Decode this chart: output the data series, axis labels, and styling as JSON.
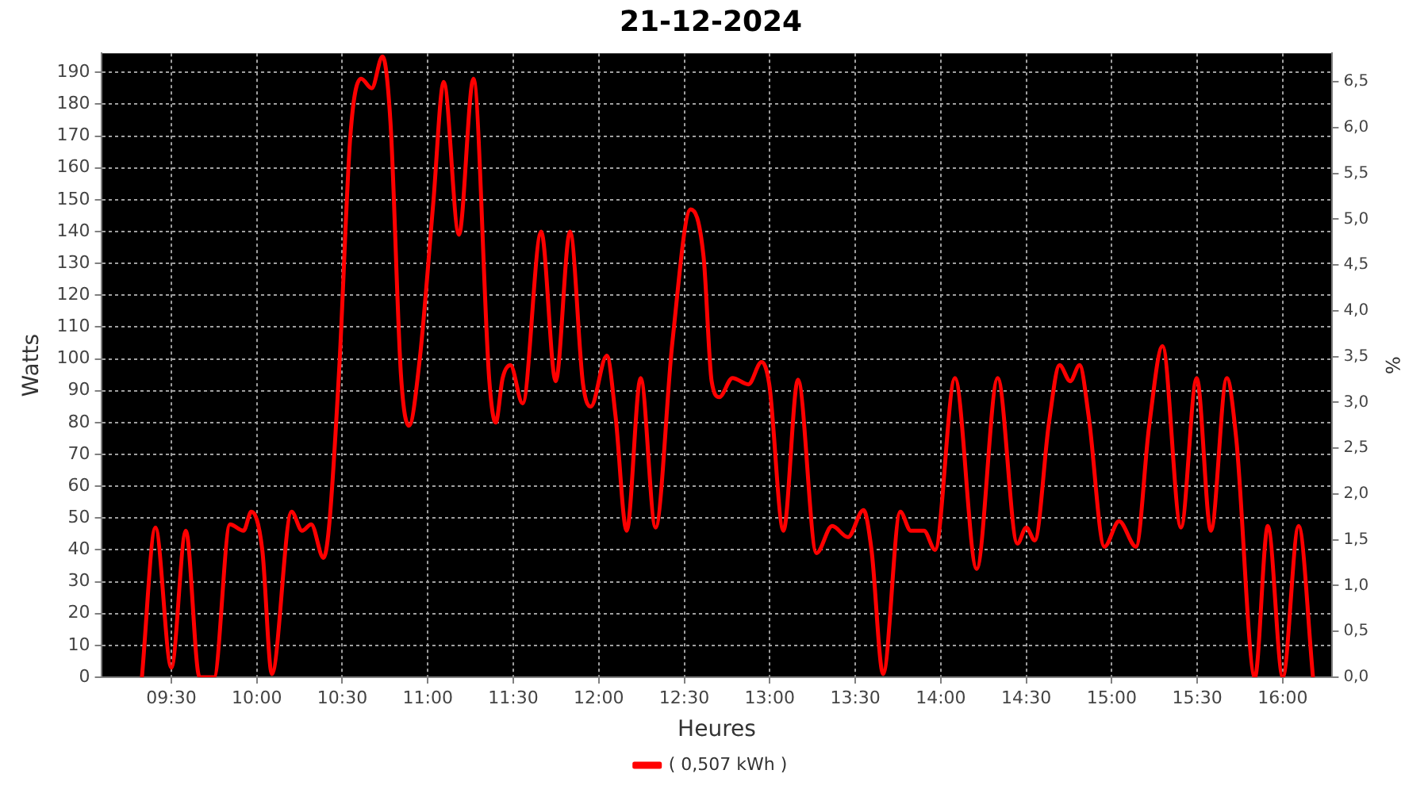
{
  "chart_data": {
    "type": "line",
    "title": "21-12-2024",
    "xlabel": "Heures",
    "ylabel": "Watts",
    "y2label": "%",
    "x": [
      9.328,
      9.407,
      9.5,
      9.585,
      9.665,
      9.75,
      9.843,
      9.922,
      9.968,
      10.032,
      10.088,
      10.203,
      10.265,
      10.318,
      10.39,
      10.422,
      10.483,
      10.547,
      10.61,
      10.672,
      10.735,
      10.782,
      10.843,
      10.89,
      10.953,
      11.032,
      11.093,
      11.182,
      11.267,
      11.36,
      11.397,
      11.438,
      11.483,
      11.555,
      11.663,
      11.748,
      11.832,
      11.908,
      11.953,
      12.047,
      12.098,
      12.163,
      12.245,
      12.332,
      12.43,
      12.537,
      12.613,
      12.66,
      12.705,
      12.782,
      12.875,
      12.952,
      12.997,
      13.08,
      13.165,
      13.273,
      13.365,
      13.457,
      13.548,
      13.595,
      13.663,
      13.763,
      13.825,
      13.902,
      13.967,
      14.083,
      14.21,
      14.333,
      14.448,
      14.5,
      14.55,
      14.633,
      14.695,
      14.757,
      14.812,
      14.865,
      14.957,
      15.043,
      15.142,
      15.218,
      15.297,
      15.405,
      15.497,
      15.58,
      15.673,
      15.728,
      15.837,
      15.913,
      16.0,
      16.093,
      16.177
    ],
    "series": [
      {
        "name": "( 0,507 kWh )",
        "color": "#ff0000",
        "values": [
          0,
          47,
          3,
          46,
          0,
          0,
          48,
          46,
          52,
          40,
          1,
          52,
          46,
          48,
          37.5,
          47,
          98,
          170,
          188,
          185,
          195,
          174,
          95,
          79,
          100,
          149,
          187,
          139,
          188,
          93,
          80,
          94,
          98,
          86,
          140,
          93,
          140,
          92,
          85,
          101,
          82,
          46,
          94,
          47,
          105,
          147,
          132,
          93,
          88,
          94,
          92,
          99,
          92,
          46,
          93.5,
          39,
          47.5,
          44,
          52.5,
          40,
          1,
          52,
          46,
          46,
          40,
          94,
          34,
          94,
          42,
          47,
          43,
          80,
          98,
          93,
          98,
          82,
          41,
          49,
          41,
          78.5,
          104,
          47,
          94,
          46,
          94,
          75,
          0,
          47.5,
          0,
          47.5,
          0
        ]
      }
    ],
    "xlim": [
      9.09,
      16.29
    ],
    "xticks": [
      {
        "value": 9.5,
        "label": "09:30"
      },
      {
        "value": 10,
        "label": "10:00"
      },
      {
        "value": 10.5,
        "label": "10:30"
      },
      {
        "value": 11,
        "label": "11:00"
      },
      {
        "value": 11.5,
        "label": "11:30"
      },
      {
        "value": 12,
        "label": "12:00"
      },
      {
        "value": 12.5,
        "label": "12:30"
      },
      {
        "value": 13,
        "label": "13:00"
      },
      {
        "value": 13.5,
        "label": "13:30"
      },
      {
        "value": 14,
        "label": "14:00"
      },
      {
        "value": 14.5,
        "label": "14:30"
      },
      {
        "value": 15,
        "label": "15:00"
      },
      {
        "value": 15.5,
        "label": "15:30"
      },
      {
        "value": 16,
        "label": "16:00"
      }
    ],
    "ylim": [
      0,
      196
    ],
    "yticks": [
      0,
      10,
      20,
      30,
      40,
      50,
      60,
      70,
      80,
      90,
      100,
      110,
      120,
      130,
      140,
      150,
      160,
      170,
      180,
      190
    ],
    "y2lim": [
      0,
      6.81
    ],
    "y2ticks": [
      {
        "value": 0,
        "label": "0,0"
      },
      {
        "value": 0.5,
        "label": "0,5"
      },
      {
        "value": 1,
        "label": "1,0"
      },
      {
        "value": 1.5,
        "label": "1,5"
      },
      {
        "value": 2,
        "label": "2,0"
      },
      {
        "value": 2.5,
        "label": "2,5"
      },
      {
        "value": 3,
        "label": "3,0"
      },
      {
        "value": 3.5,
        "label": "3,5"
      },
      {
        "value": 4,
        "label": "4,0"
      },
      {
        "value": 4.5,
        "label": "4,5"
      },
      {
        "value": 5,
        "label": "5,0"
      },
      {
        "value": 5.5,
        "label": "5,5"
      },
      {
        "value": 6,
        "label": "6,0"
      },
      {
        "value": 6.5,
        "label": "6,5"
      }
    ],
    "grid": true,
    "legend": "bottom",
    "marker": "none",
    "line_style": "solid"
  }
}
